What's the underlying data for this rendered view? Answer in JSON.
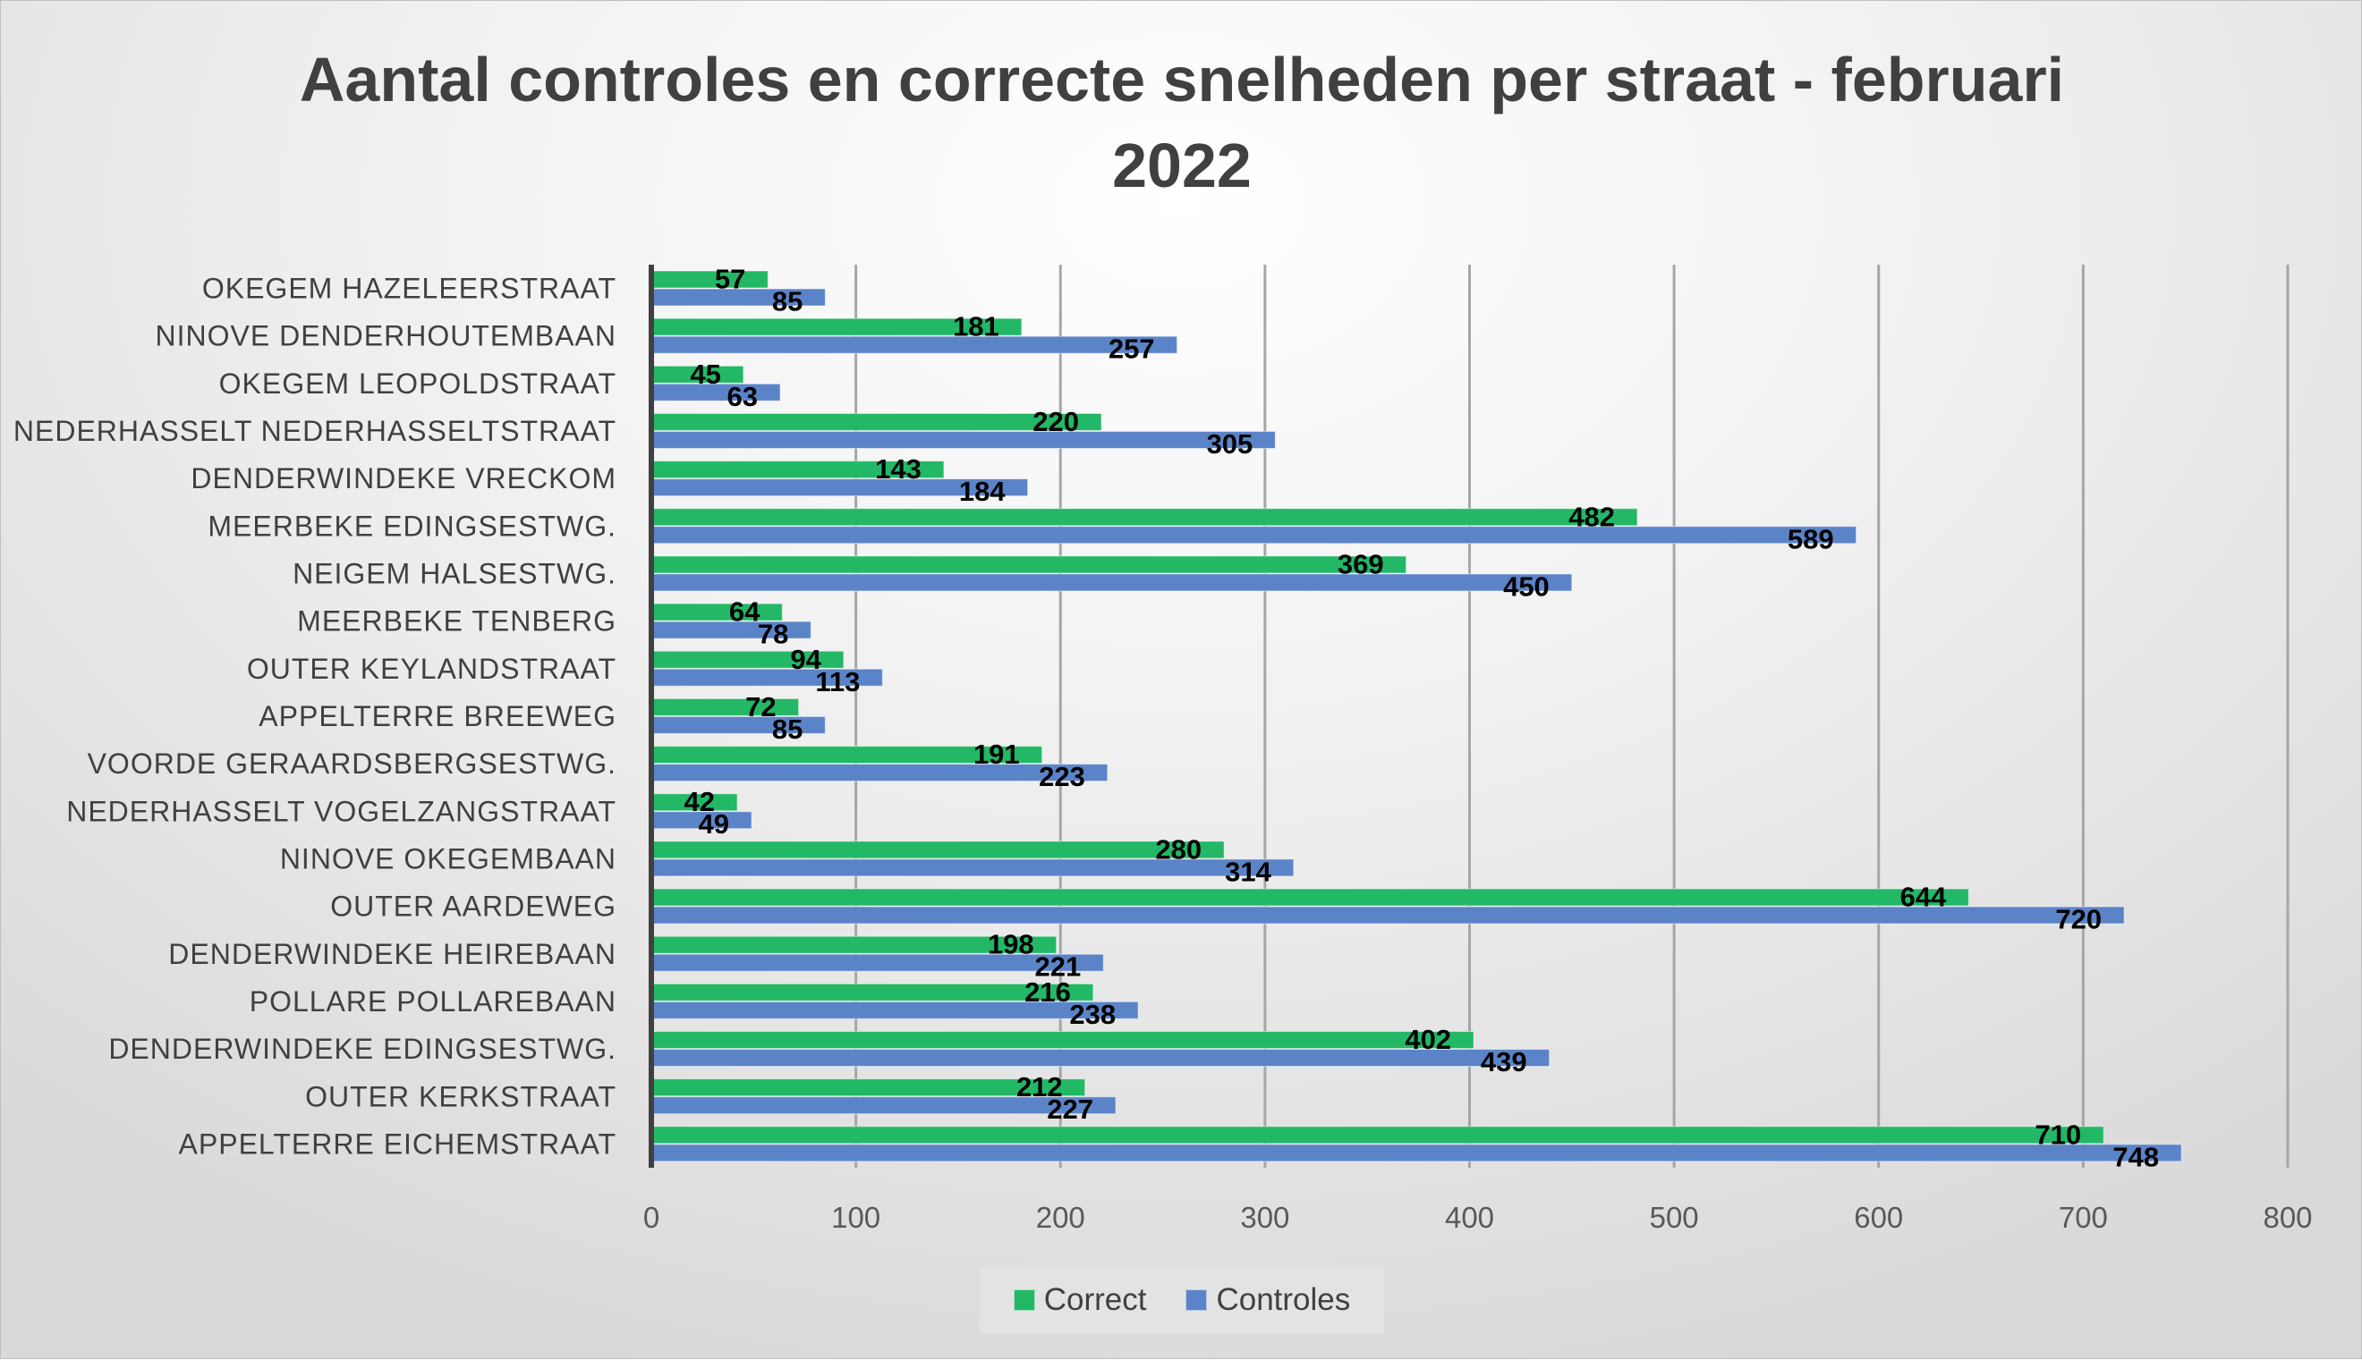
{
  "chart_data": {
    "type": "bar",
    "orientation": "horizontal",
    "title_lines": [
      "Aantal controles en correcte snelheden per straat - februari",
      "2022"
    ],
    "xlabel": "",
    "ylabel": "",
    "xlim": [
      0,
      800
    ],
    "x_ticks": [
      "0",
      "100",
      "200",
      "300",
      "400",
      "500",
      "600",
      "700",
      "800"
    ],
    "grid": "vertical",
    "legend_position": "bottom",
    "categories": [
      "OKEGEM HAZELEERSTRAAT",
      "NINOVE DENDERHOUTEMBAAN",
      "OKEGEM LEOPOLDSTRAAT",
      "NEDERHASSELT NEDERHASSELTSTRAAT",
      "DENDERWINDEKE VRECKOM",
      "MEERBEKE EDINGSESTWG.",
      "NEIGEM HALSESTWG.",
      "MEERBEKE TENBERG",
      "OUTER KEYLANDSTRAAT",
      "APPELTERRE BREEWEG",
      "VOORDE GERAARDSBERGSESTWG.",
      "NEDERHASSELT VOGELZANGSTRAAT",
      "NINOVE OKEGEMBAAN",
      "OUTER AARDEWEG",
      "DENDERWINDEKE HEIREBAAN",
      "POLLARE POLLAREBAAN",
      "DENDERWINDEKE EDINGSESTWG.",
      "OUTER KERKSTRAAT",
      "APPELTERRE EICHEMSTRAAT"
    ],
    "series": [
      {
        "name": "Correct",
        "color": "#23b866",
        "values": [
          57,
          181,
          45,
          220,
          143,
          482,
          369,
          64,
          94,
          72,
          191,
          42,
          280,
          644,
          198,
          216,
          402,
          212,
          710
        ]
      },
      {
        "name": "Controles",
        "color": "#5b84c8",
        "values": [
          85,
          257,
          63,
          305,
          184,
          589,
          450,
          78,
          113,
          85,
          223,
          49,
          314,
          720,
          221,
          238,
          439,
          227,
          748
        ]
      }
    ]
  }
}
